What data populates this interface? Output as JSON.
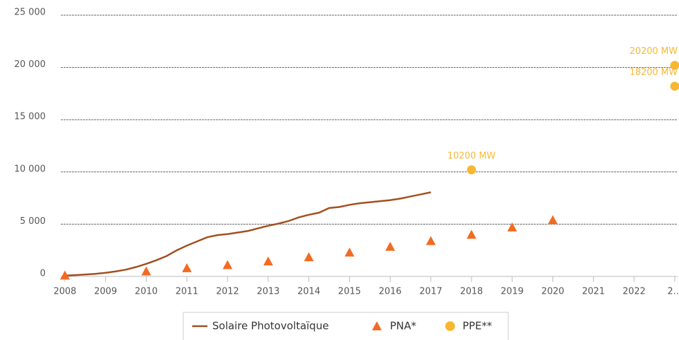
{
  "chart_data": {
    "type": "line",
    "xlim": [
      2007.9,
      2023.07
    ],
    "xticks": [
      2008,
      2009,
      2010,
      2011,
      2012,
      2013,
      2014,
      2015,
      2016,
      2017,
      2018,
      2019,
      2020,
      2021,
      2022,
      {
        "value": 2023,
        "label": "2…"
      }
    ],
    "ylim": [
      0,
      25000
    ],
    "yticks": [
      0,
      {
        "value": 5000,
        "label": "5 000"
      },
      {
        "value": 10000,
        "label": "10 000"
      },
      {
        "value": 15000,
        "label": "15 000"
      },
      {
        "value": 20000,
        "label": "20 000"
      },
      {
        "value": 25000,
        "label": "25 000"
      }
    ],
    "grid": true,
    "legend": "bottom",
    "series": [
      {
        "name": "Solaire Photovoltaïque",
        "type": "line",
        "color": "#a34e1d",
        "x": [
          2008,
          2008.25,
          2008.5,
          2008.75,
          2009,
          2009.25,
          2009.5,
          2009.75,
          2010,
          2010.25,
          2010.5,
          2010.75,
          2011,
          2011.25,
          2011.5,
          2011.75,
          2012,
          2012.25,
          2012.5,
          2012.75,
          2013,
          2013.25,
          2013.5,
          2013.75,
          2014,
          2014.25,
          2014.5,
          2014.75,
          2015,
          2015.25,
          2015.5,
          2015.75,
          2016,
          2016.25,
          2016.5,
          2016.75,
          2017
        ],
        "values": [
          80,
          120,
          180,
          250,
          350,
          480,
          650,
          900,
          1200,
          1550,
          1950,
          2500,
          2950,
          3350,
          3750,
          3950,
          4050,
          4200,
          4350,
          4600,
          4850,
          5050,
          5300,
          5650,
          5900,
          6100,
          6550,
          6650,
          6850,
          7000,
          7100,
          7200,
          7300,
          7450,
          7650,
          7850,
          8050
        ]
      },
      {
        "name": "PNA*",
        "type": "triangle",
        "color": "#f26b21",
        "x": [
          2008,
          2010,
          2011,
          2012,
          2013,
          2014,
          2015,
          2016,
          2017,
          2018,
          2019,
          2020
        ],
        "values": [
          100,
          500,
          800,
          1100,
          1450,
          1850,
          2300,
          2850,
          3400,
          4000,
          4700,
          5400
        ]
      },
      {
        "name": "PPE**",
        "type": "dot",
        "color": "#f7b731",
        "x": [
          2018,
          2023,
          2023
        ],
        "values": [
          10200,
          20200,
          18200
        ],
        "value_labels": [
          "10200 MW",
          "20200 MW",
          "18200 MW"
        ]
      }
    ]
  }
}
